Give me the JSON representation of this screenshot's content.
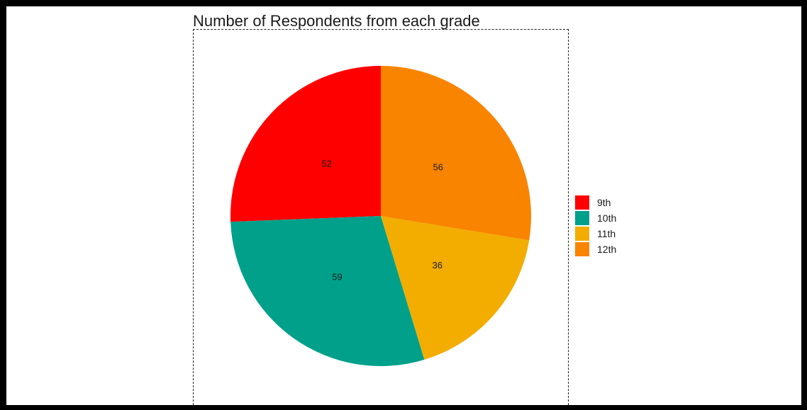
{
  "chart_data": {
    "type": "pie",
    "title": "Number of Respondents from each grade",
    "categories": [
      "9th",
      "10th",
      "11th",
      "12th"
    ],
    "values": [
      52,
      59,
      36,
      56
    ],
    "colors": [
      "#FF0000",
      "#00A08A",
      "#F2AD00",
      "#F98400"
    ],
    "legend_position": "right",
    "start": "top",
    "direction": "counterclockwise"
  }
}
